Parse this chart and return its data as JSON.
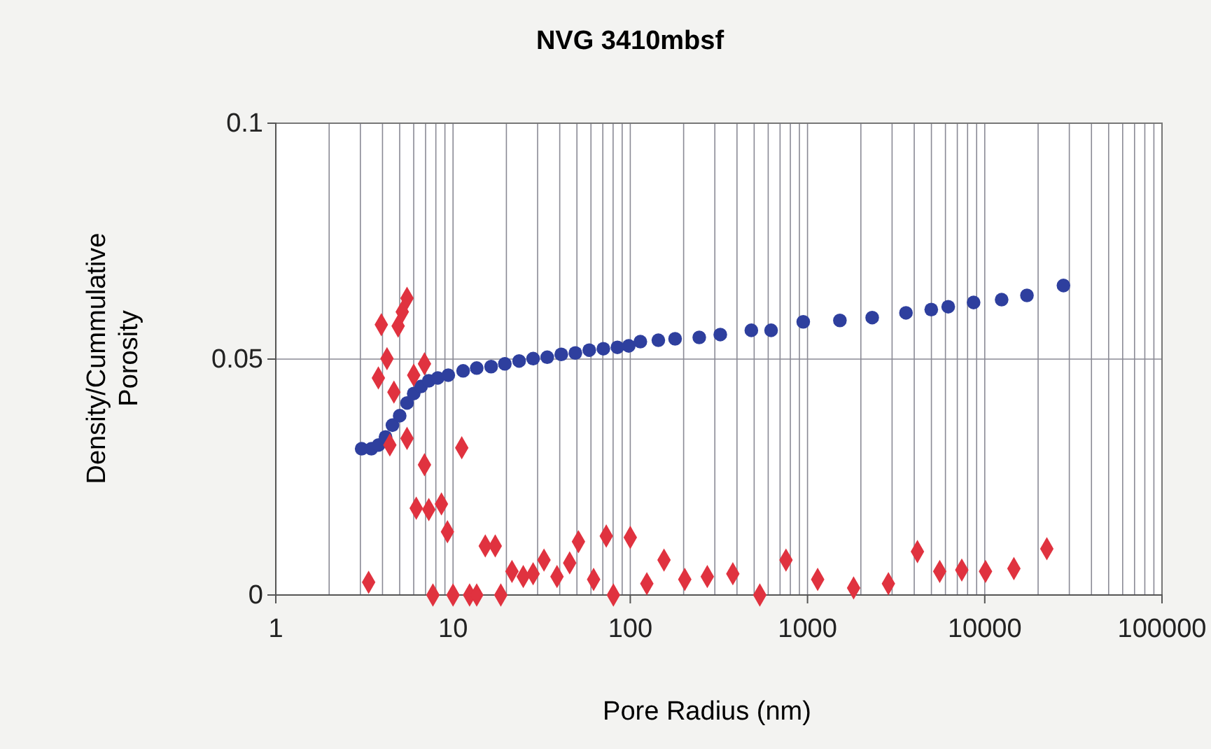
{
  "chart_data": {
    "type": "scatter",
    "title": "NVG 3410mbsf",
    "xlabel": "Pore Radius (nm)",
    "ylabel": "Density/Cummulative Porosity",
    "log": "x",
    "grid": true,
    "xlim": [
      1,
      100000
    ],
    "xticks": [
      1,
      10,
      100,
      1000,
      10000,
      100000
    ],
    "ylim": [
      0,
      0.1
    ],
    "yticks": [
      0,
      0.05,
      0.1
    ],
    "series": [
      {
        "color": "#2e3f9e",
        "marker": "circle",
        "x": [
          3.05,
          3.46,
          3.8,
          4.16,
          4.55,
          5.0,
          5.5,
          6.0,
          6.6,
          7.3,
          8.2,
          9.4,
          11.4,
          13.6,
          16.4,
          19.6,
          23.6,
          28.3,
          34,
          40.8,
          49,
          58.7,
          70.5,
          84.6,
          98,
          114,
          144,
          179,
          245,
          322,
          482,
          623,
          946,
          1523,
          2317,
          3593,
          4990,
          6220,
          8650,
          12450,
          17300,
          27800
        ],
        "values": [
          0.031,
          0.031,
          0.0318,
          0.0335,
          0.036,
          0.038,
          0.0407,
          0.0427,
          0.0442,
          0.0454,
          0.046,
          0.0466,
          0.0475,
          0.0481,
          0.0484,
          0.049,
          0.0496,
          0.0501,
          0.0504,
          0.051,
          0.0513,
          0.0519,
          0.0522,
          0.0525,
          0.0528,
          0.0537,
          0.054,
          0.0543,
          0.0546,
          0.0552,
          0.0561,
          0.0561,
          0.0579,
          0.0582,
          0.0588,
          0.0598,
          0.0605,
          0.0611,
          0.062,
          0.0626,
          0.0635,
          0.0656
        ]
      },
      {
        "color": "#e0323f",
        "marker": "diamond",
        "x": [
          3.34,
          3.79,
          3.94,
          4.24,
          4.4,
          4.64,
          4.9,
          5.17,
          5.5,
          5.5,
          6.0,
          6.2,
          6.9,
          6.9,
          7.3,
          7.7,
          8.6,
          9.3,
          10,
          11.2,
          12.4,
          13.6,
          15.2,
          17.3,
          18.6,
          21.5,
          24.9,
          28.3,
          32.6,
          38.6,
          45.5,
          51,
          62.1,
          73.2,
          80.3,
          100,
          124,
          155,
          203,
          272,
          379,
          538,
          756,
          1141,
          1820,
          2860,
          4170,
          5570,
          7420,
          10100,
          14600,
          22400
        ],
        "values": [
          0.0027,
          0.046,
          0.0573,
          0.0501,
          0.0318,
          0.043,
          0.057,
          0.06,
          0.0629,
          0.0332,
          0.0466,
          0.0184,
          0.049,
          0.0276,
          0.0181,
          0,
          0.0193,
          0.0134,
          0,
          0.0312,
          0,
          0,
          0.0104,
          0.0104,
          0,
          0.005,
          0.0039,
          0.0045,
          0.0074,
          0.0039,
          0.0068,
          0.0113,
          0.0033,
          0.0125,
          0,
          0.0122,
          0.0024,
          0.0074,
          0.0033,
          0.0039,
          0.0045,
          0,
          0.0074,
          0.0033,
          0.0015,
          0.0024,
          0.0092,
          0.005,
          0.0053,
          0.005,
          0.0056,
          0.0098
        ]
      }
    ]
  }
}
